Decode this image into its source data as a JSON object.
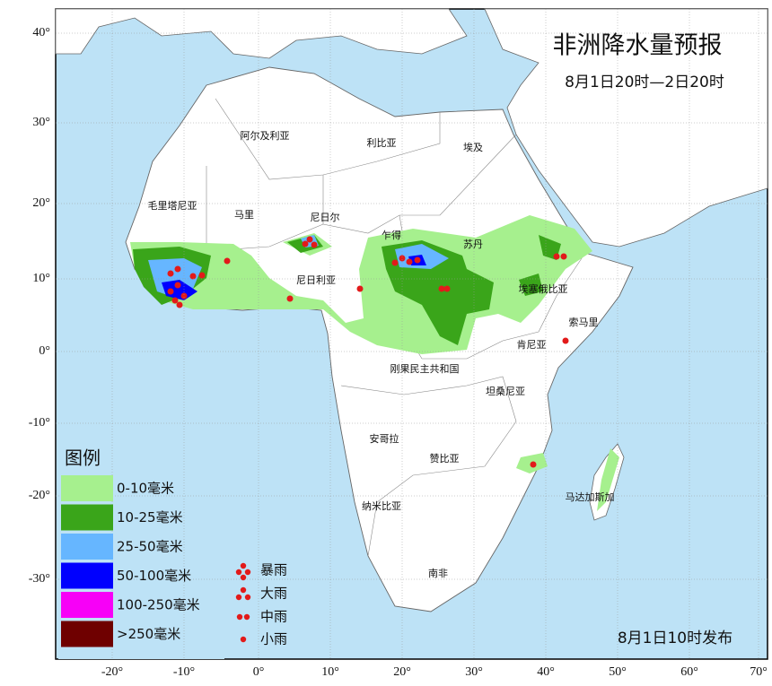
{
  "title": "非洲降水量预报",
  "subtitle": "8月1日20时—2日20时",
  "issued": "8月1日10时发布",
  "latitude_labels": [
    "40°",
    "30°",
    "20°",
    "10°",
    "0°",
    "-10°",
    "-20°",
    "-30°"
  ],
  "longitude_labels": [
    "-20°",
    "-10°",
    "0°",
    "10°",
    "20°",
    "30°",
    "40°",
    "50°",
    "60°",
    "70°"
  ],
  "countries": [
    "阿尔及利亚",
    "利比亚",
    "埃及",
    "毛里塔尼亚",
    "马里",
    "尼日尔",
    "乍得",
    "苏丹",
    "尼日利亚",
    "埃塞俄比亚",
    "索马里",
    "肯尼亚",
    "刚果民主共和国",
    "坦桑尼亚",
    "安哥拉",
    "赞比亚",
    "马达加斯加",
    "纳米比亚",
    "南非"
  ],
  "legend": {
    "title": "图例",
    "rain_amounts": [
      {
        "label": "0-10毫米",
        "color": "#a6f08e"
      },
      {
        "label": "10-25毫米",
        "color": "#3aa51a"
      },
      {
        "label": "25-50毫米",
        "color": "#66b6ff"
      },
      {
        "label": "50-100毫米",
        "color": "#0000fe"
      },
      {
        "label": "100-250毫米",
        "color": "#f700f7"
      },
      {
        "label": ">250毫米",
        "color": "#6f0000"
      }
    ],
    "rain_symbols": [
      "暴雨",
      "大雨",
      "中雨",
      "小雨"
    ]
  }
}
